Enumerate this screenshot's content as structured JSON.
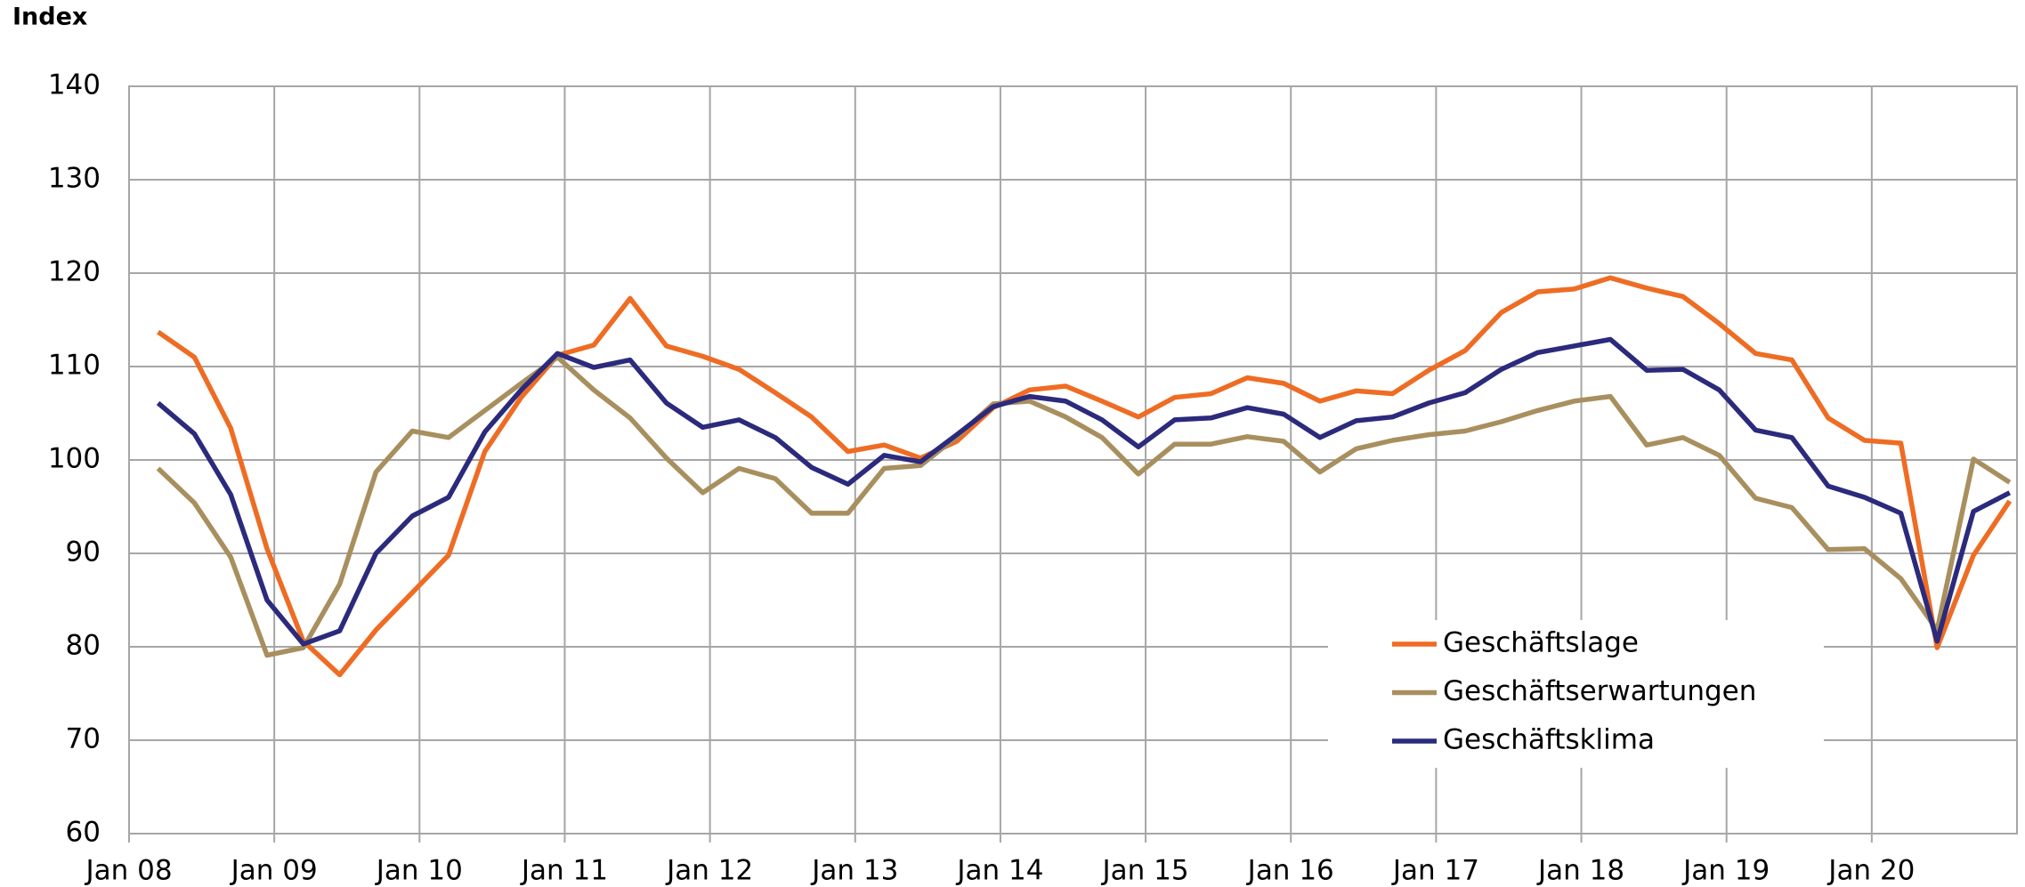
{
  "chart_data": {
    "type": "line",
    "y_label": "Index",
    "x": [
      2008.2,
      2008.45,
      2008.7,
      2008.95,
      2009.2,
      2009.45,
      2009.7,
      2009.95,
      2010.2,
      2010.45,
      2010.7,
      2010.95,
      2011.2,
      2011.45,
      2011.7,
      2011.95,
      2012.2,
      2012.45,
      2012.7,
      2012.95,
      2013.2,
      2013.45,
      2013.7,
      2013.95,
      2014.2,
      2014.45,
      2014.7,
      2014.95,
      2015.2,
      2015.45,
      2015.7,
      2015.95,
      2016.2,
      2016.45,
      2016.7,
      2016.95,
      2017.2,
      2017.45,
      2017.7,
      2017.95,
      2018.2,
      2018.45,
      2018.7,
      2018.95,
      2019.2,
      2019.45,
      2019.7,
      2019.95,
      2020.2,
      2020.45,
      2020.7,
      2020.95
    ],
    "series": [
      {
        "name": "Geschäftslage",
        "color": "#ee6c23",
        "values": [
          113.7,
          111.0,
          103.4,
          90.5,
          80.6,
          77.0,
          81.8,
          85.8,
          89.8,
          100.9,
          106.7,
          111.2,
          112.3,
          117.3,
          112.2,
          111.1,
          109.7,
          107.2,
          104.6,
          100.9,
          101.6,
          100.2,
          102.0,
          105.6,
          107.5,
          107.9,
          106.3,
          104.6,
          106.7,
          107.1,
          108.8,
          108.2,
          106.3,
          107.4,
          107.1,
          109.6,
          111.7,
          115.8,
          118.0,
          118.3,
          119.5,
          118.4,
          117.5,
          114.6,
          111.4,
          110.7,
          104.5,
          102.1,
          101.8,
          79.9,
          89.8,
          95.6
        ]
      },
      {
        "name": "Geschäftserwartungen",
        "color": "#a88f5e",
        "values": [
          99.1,
          95.4,
          89.6,
          79.1,
          79.9,
          86.7,
          98.7,
          103.1,
          102.4,
          105.3,
          108.2,
          111.0,
          107.5,
          104.5,
          100.2,
          96.5,
          99.1,
          98.0,
          94.3,
          94.3,
          99.1,
          99.4,
          102.5,
          106.0,
          106.3,
          104.6,
          102.4,
          98.5,
          101.7,
          101.7,
          102.5,
          102.0,
          98.7,
          101.2,
          102.1,
          102.7,
          103.1,
          104.1,
          105.3,
          106.3,
          106.8,
          101.6,
          102.4,
          100.5,
          95.9,
          94.9,
          90.4,
          90.5,
          87.3,
          81.8,
          100.1,
          97.6
        ]
      },
      {
        "name": "Geschäftsklima",
        "color": "#2b2a7c",
        "values": [
          106.1,
          102.8,
          96.3,
          85.0,
          80.3,
          81.7,
          90.0,
          94.0,
          96.0,
          103.0,
          107.5,
          111.4,
          109.9,
          110.7,
          106.1,
          103.5,
          104.3,
          102.4,
          99.2,
          97.4,
          100.5,
          99.8,
          102.7,
          105.7,
          106.8,
          106.3,
          104.3,
          101.4,
          104.3,
          104.5,
          105.6,
          104.9,
          102.4,
          104.2,
          104.6,
          106.1,
          107.2,
          109.7,
          111.5,
          112.2,
          112.9,
          109.6,
          109.7,
          107.5,
          103.2,
          102.4,
          97.2,
          96.0,
          94.3,
          80.6,
          94.5,
          96.5
        ]
      }
    ],
    "xlim": [
      2008,
      2021
    ],
    "xticks": [
      {
        "value": 2008,
        "label": "Jan 08"
      },
      {
        "value": 2009,
        "label": "Jan 09"
      },
      {
        "value": 2010,
        "label": "Jan 10"
      },
      {
        "value": 2011,
        "label": "Jan 11"
      },
      {
        "value": 2012,
        "label": "Jan 12"
      },
      {
        "value": 2013,
        "label": "Jan 13"
      },
      {
        "value": 2014,
        "label": "Jan 14"
      },
      {
        "value": 2015,
        "label": "Jan 15"
      },
      {
        "value": 2016,
        "label": "Jan 16"
      },
      {
        "value": 2017,
        "label": "Jan 17"
      },
      {
        "value": 2018,
        "label": "Jan 18"
      },
      {
        "value": 2019,
        "label": "Jan 19"
      },
      {
        "value": 2020,
        "label": "Jan 20"
      }
    ],
    "ylim": [
      60,
      140
    ],
    "yticks": [
      60,
      70,
      80,
      90,
      100,
      110,
      120,
      130,
      140
    ],
    "grid": true,
    "legend": "lower right"
  }
}
